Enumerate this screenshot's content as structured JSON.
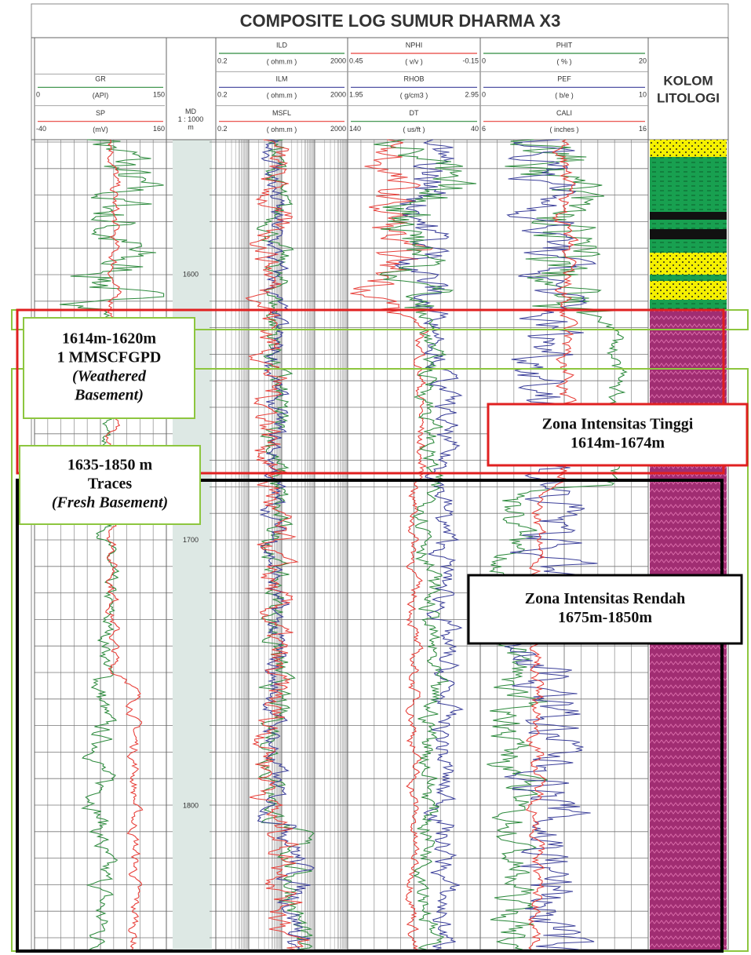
{
  "title": "COMPOSITE LOG SUMUR DHARMA X3",
  "tracks": [
    {
      "curves": [
        {
          "name": "GR",
          "min": "0",
          "unit": "(API)",
          "max": "150",
          "color": "#2e8b3e"
        },
        {
          "name": "SP",
          "min": "-40",
          "unit": "(mV)",
          "max": "160",
          "color": "#e8403a"
        }
      ]
    },
    {
      "curves": [
        {
          "name": "ILD",
          "min": "0.2",
          "unit": "( ohm.m )",
          "max": "2000",
          "color": "#2e8b3e"
        },
        {
          "name": "ILM",
          "min": "0.2",
          "unit": "( ohm.m )",
          "max": "2000",
          "color": "#3b3f9a"
        },
        {
          "name": "MSFL",
          "min": "0.2",
          "unit": "( ohm.m )",
          "max": "2000",
          "color": "#e8403a"
        }
      ]
    },
    {
      "curves": [
        {
          "name": "NPHI",
          "min": "0.45",
          "unit": "( v/v )",
          "max": "-0.15",
          "color": "#e8403a"
        },
        {
          "name": "RHOB",
          "min": "1.95",
          "unit": "( g/cm3 )",
          "max": "2.95",
          "color": "#3b3f9a"
        },
        {
          "name": "DT",
          "min": "140",
          "unit": "( us/ft )",
          "max": "40",
          "color": "#2e8b3e"
        }
      ]
    },
    {
      "curves": [
        {
          "name": "PHIT",
          "min": "0",
          "unit": "( % )",
          "max": "20",
          "color": "#2e8b3e"
        },
        {
          "name": "PEF",
          "min": "0",
          "unit": "( b/e )",
          "max": "10",
          "color": "#3b3f9a"
        },
        {
          "name": "CALI",
          "min": "6",
          "unit": "( inches )",
          "max": "16",
          "color": "#e8403a"
        }
      ]
    }
  ],
  "depth_header": [
    "MD",
    "1 : 1000",
    "m"
  ],
  "depth_labels": [
    "1600",
    "1700",
    "1800"
  ],
  "lithology_header": [
    "KOLOM",
    "LITOLOGI"
  ],
  "annotations": [
    {
      "lines": [
        "1614m-1620m",
        "1 MMSCFGPD",
        "(Weathered",
        "Basement)"
      ],
      "border": "#8dc63f"
    },
    {
      "lines": [
        "1635-1850 m",
        "Traces",
        "(Fresh Basement)"
      ],
      "border": "#8dc63f"
    },
    {
      "lines": [
        "Zona Intensitas  Tinggi",
        "1614m-1674m"
      ],
      "border": "#e02020"
    },
    {
      "lines": [
        "Zona Intensitas Rendah",
        "1675m-1850m"
      ],
      "border": "#000000"
    }
  ]
}
